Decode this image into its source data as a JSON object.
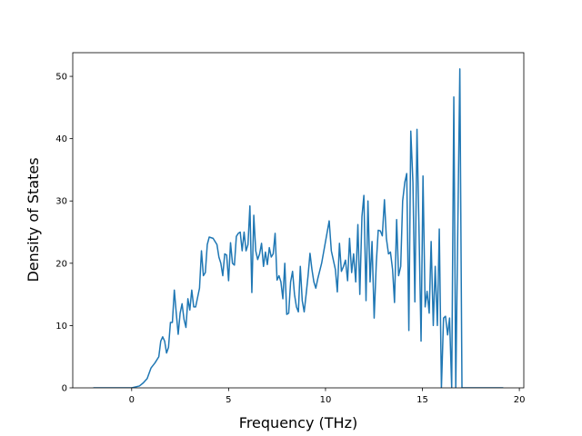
{
  "chart_data": {
    "type": "line",
    "xlabel": "Frequency (THz)",
    "ylabel": "Density of States",
    "color": "#1f77b4",
    "x": [
      -1.98,
      0.0,
      0.4,
      0.6,
      0.8,
      1.0,
      1.2,
      1.4,
      1.5,
      1.6,
      1.7,
      1.8,
      1.9,
      2.0,
      2.1,
      2.2,
      2.3,
      2.4,
      2.5,
      2.6,
      2.7,
      2.8,
      2.9,
      3.0,
      3.1,
      3.2,
      3.3,
      3.5,
      3.6,
      3.7,
      3.8,
      3.9,
      4.0,
      4.2,
      4.4,
      4.5,
      4.6,
      4.7,
      4.8,
      4.9,
      5.0,
      5.1,
      5.2,
      5.3,
      5.4,
      5.5,
      5.6,
      5.7,
      5.8,
      5.9,
      6.0,
      6.1,
      6.2,
      6.3,
      6.4,
      6.5,
      6.6,
      6.7,
      6.8,
      6.9,
      7.0,
      7.1,
      7.2,
      7.3,
      7.4,
      7.5,
      7.6,
      7.7,
      7.8,
      7.9,
      8.0,
      8.1,
      8.2,
      8.3,
      8.4,
      8.5,
      8.6,
      8.7,
      8.8,
      8.9,
      9.0,
      9.1,
      9.2,
      9.3,
      9.4,
      9.5,
      9.6,
      9.8,
      10.19,
      10.3,
      10.51,
      10.61,
      10.72,
      10.82,
      10.93,
      11.03,
      11.14,
      11.24,
      11.35,
      11.45,
      11.56,
      11.67,
      11.77,
      11.88,
      11.98,
      12.09,
      12.19,
      12.3,
      12.4,
      12.51,
      12.62,
      12.72,
      12.83,
      12.93,
      13.04,
      13.14,
      13.25,
      13.35,
      13.46,
      13.56,
      13.67,
      13.77,
      13.88,
      13.98,
      14.09,
      14.19,
      14.3,
      14.4,
      14.51,
      14.61,
      14.72,
      14.82,
      14.93,
      15.03,
      15.14,
      15.24,
      15.35,
      15.45,
      15.56,
      15.66,
      15.77,
      15.87,
      15.98,
      16.09,
      16.19,
      16.3,
      16.4,
      16.51,
      16.62,
      16.72,
      16.93,
      17.04,
      19.17
    ],
    "values": [
      0,
      0,
      0.3,
      0.8,
      1.5,
      3.2,
      4.0,
      5.0,
      7.5,
      8.2,
      7.5,
      5.6,
      6.5,
      10.5,
      10.5,
      15.7,
      12.0,
      8.6,
      12.0,
      13.5,
      11.0,
      9.7,
      14.3,
      12.5,
      15.7,
      13.0,
      13.0,
      16.0,
      22.0,
      18.0,
      18.5,
      23.0,
      24.2,
      24.0,
      23.0,
      21.0,
      20.0,
      18.0,
      21.5,
      21.3,
      17.2,
      23.3,
      20.0,
      19.7,
      24.3,
      24.8,
      25.0,
      22.0,
      25.0,
      22.0,
      23.0,
      29.2,
      15.3,
      27.7,
      22.0,
      20.6,
      21.5,
      23.2,
      19.5,
      21.8,
      19.8,
      22.5,
      21.0,
      21.5,
      24.8,
      17.3,
      18.0,
      17.0,
      14.3,
      20.0,
      11.8,
      12.0,
      17.0,
      18.7,
      15.0,
      13.0,
      12.2,
      19.5,
      14.0,
      12.2,
      15.0,
      18.0,
      21.6,
      19.0,
      17.0,
      16.0,
      17.5,
      20.0,
      26.8,
      22.0,
      19.0,
      15.4,
      23.2,
      18.7,
      19.5,
      20.5,
      17.2,
      24.0,
      18.5,
      21.5,
      17.0,
      26.2,
      15.0,
      27.5,
      30.9,
      14.0,
      30.0,
      17.0,
      23.5,
      11.2,
      20.0,
      25.3,
      25.2,
      24.4,
      30.2,
      24.0,
      21.5,
      21.8,
      19.0,
      13.7,
      27.0,
      18.0,
      19.5,
      30.0,
      33.0,
      34.4,
      9.2,
      41.2,
      33.0,
      13.8,
      41.5,
      26.0,
      7.5,
      34.0,
      13.0,
      15.5,
      12.0,
      23.5,
      10.0,
      19.5,
      10.0,
      25.5,
      0,
      11.2,
      11.5,
      8.5,
      11.2,
      0,
      46.7,
      0,
      51.2,
      0,
      0
    ],
    "xlim": [
      -3.04,
      20.23
    ],
    "xticks": [
      0,
      5,
      10,
      15,
      20
    ],
    "ylim": [
      0,
      53.8
    ],
    "yticks": [
      0,
      10,
      20,
      30,
      40,
      50
    ]
  }
}
